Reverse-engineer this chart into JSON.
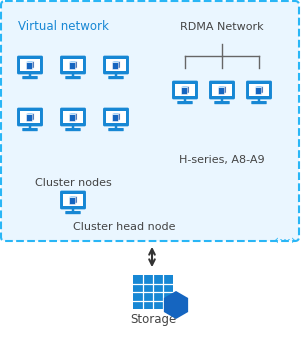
{
  "virtual_network_label": "Virtual network",
  "cluster_nodes_label": "Cluster nodes",
  "rdma_label": "RDMA Network",
  "hseries_label": "H-series, A8-A9",
  "head_node_label": "Cluster head node",
  "storage_label": "Storage",
  "blue": "#1787d4",
  "dark_blue": "#0d5fa0",
  "light_blue": "#5bb8f5",
  "border_blue": "#29b6f6",
  "text_color": "#444444",
  "arrow_color": "#333333",
  "bg_color": "#ffffff",
  "vnet_bg": "#eaf6ff",
  "monitor_blue": "#1787d4",
  "cube_front": "#1565c0",
  "cube_top": "#42a5f5",
  "cube_right": "#0d47a1",
  "hex_color": "#1565c0",
  "storage_blue": "#1787d4"
}
